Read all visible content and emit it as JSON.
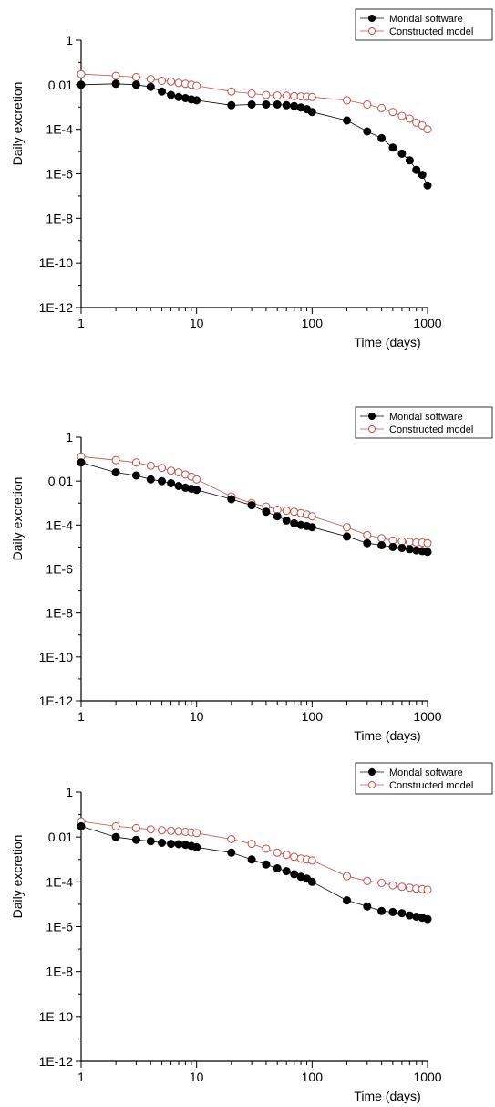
{
  "colors": {
    "mondal": "#000000",
    "constructed": "#c0504d",
    "axis": "#000000"
  },
  "chart_data": [
    {
      "type": "scatter",
      "title": "",
      "xlabel": "Time (days)",
      "ylabel": "Daily excretion",
      "xscale": "log",
      "yscale": "log",
      "xlim": [
        1,
        1000
      ],
      "ylim": [
        1e-12,
        1
      ],
      "xticks": [
        "1",
        "10",
        "100",
        "1000"
      ],
      "yticks": [
        "1E-12",
        "1E-10",
        "1E-8",
        "1E-6",
        "1E-4",
        "0.01",
        "1"
      ],
      "legend": "top-right",
      "series": [
        {
          "name": "Mondal software",
          "marker": "filled-circle",
          "color": "#000000",
          "x": [
            1,
            2,
            3,
            4,
            5,
            6,
            7,
            8,
            9,
            10,
            20,
            30,
            40,
            50,
            60,
            70,
            80,
            90,
            100,
            200,
            300,
            400,
            500,
            600,
            700,
            800,
            900,
            1000
          ],
          "y": [
            0.01,
            0.011,
            0.01,
            0.008,
            0.005,
            0.0035,
            0.0028,
            0.0025,
            0.0022,
            0.002,
            0.0012,
            0.0013,
            0.0013,
            0.0013,
            0.0012,
            0.0011,
            0.00095,
            0.0008,
            0.0006,
            0.00025,
            8e-05,
            4e-05,
            1.5e-05,
            8e-06,
            4e-06,
            1.5e-06,
            9e-07,
            3e-07
          ]
        },
        {
          "name": "Constructed model",
          "marker": "open-circle",
          "color": "#c0504d",
          "x": [
            1,
            2,
            3,
            4,
            5,
            6,
            7,
            8,
            9,
            10,
            20,
            30,
            40,
            50,
            60,
            70,
            80,
            90,
            100,
            200,
            300,
            400,
            500,
            600,
            700,
            800,
            900,
            1000
          ],
          "y": [
            0.03,
            0.025,
            0.022,
            0.018,
            0.015,
            0.014,
            0.012,
            0.011,
            0.01,
            0.009,
            0.005,
            0.004,
            0.0035,
            0.0033,
            0.0032,
            0.0031,
            0.003,
            0.0029,
            0.0028,
            0.002,
            0.0013,
            0.0009,
            0.0006,
            0.0004,
            0.0003,
            0.0002,
            0.00015,
            0.0001
          ]
        }
      ]
    },
    {
      "type": "scatter",
      "title": "",
      "xlabel": "Time (days)",
      "ylabel": "Daily excretion",
      "xscale": "log",
      "yscale": "log",
      "xlim": [
        1,
        1000
      ],
      "ylim": [
        1e-12,
        1
      ],
      "xticks": [
        "1",
        "10",
        "100",
        "1000"
      ],
      "yticks": [
        "1E-12",
        "1E-10",
        "1E-8",
        "1E-6",
        "1E-4",
        "0.01",
        "1"
      ],
      "legend": "top-right",
      "series": [
        {
          "name": "Mondal software",
          "marker": "filled-circle",
          "color": "#000000",
          "x": [
            1,
            2,
            3,
            4,
            5,
            6,
            7,
            8,
            9,
            10,
            20,
            30,
            40,
            50,
            60,
            70,
            80,
            90,
            100,
            200,
            300,
            400,
            500,
            600,
            700,
            800,
            900,
            1000
          ],
          "y": [
            0.07,
            0.025,
            0.018,
            0.012,
            0.01,
            0.008,
            0.006,
            0.005,
            0.0045,
            0.004,
            0.0015,
            0.0008,
            0.0004,
            0.00025,
            0.00016,
            0.00012,
            0.0001,
            9e-05,
            8e-05,
            3e-05,
            1.5e-05,
            1.2e-05,
            1e-05,
            9e-06,
            8e-06,
            7e-06,
            6.5e-06,
            6e-06
          ]
        },
        {
          "name": "Constructed model",
          "marker": "open-circle",
          "color": "#c0504d",
          "x": [
            1,
            2,
            3,
            4,
            5,
            6,
            7,
            8,
            9,
            10,
            20,
            30,
            40,
            50,
            60,
            70,
            80,
            90,
            100,
            200,
            300,
            400,
            500,
            600,
            700,
            800,
            900,
            1000
          ],
          "y": [
            0.13,
            0.09,
            0.07,
            0.05,
            0.04,
            0.03,
            0.025,
            0.02,
            0.016,
            0.012,
            0.002,
            0.001,
            0.0007,
            0.0005,
            0.00045,
            0.0004,
            0.00035,
            0.0003,
            0.00025,
            8e-05,
            3.5e-05,
            2.5e-05,
            2e-05,
            1.8e-05,
            1.7e-05,
            1.6e-05,
            1.6e-05,
            1.5e-05
          ]
        }
      ]
    },
    {
      "type": "scatter",
      "title": "",
      "xlabel": "Time (days)",
      "ylabel": "Daily excretion",
      "xscale": "log",
      "yscale": "log",
      "xlim": [
        1,
        1000
      ],
      "ylim": [
        1e-12,
        1
      ],
      "xticks": [
        "1",
        "10",
        "100",
        "1000"
      ],
      "yticks": [
        "1E-12",
        "1E-10",
        "1E-8",
        "1E-6",
        "1E-4",
        "0.01",
        "1"
      ],
      "legend": "top-right",
      "series": [
        {
          "name": "Mondal software",
          "marker": "filled-circle",
          "color": "#000000",
          "x": [
            1,
            2,
            3,
            4,
            5,
            6,
            7,
            8,
            9,
            10,
            20,
            30,
            40,
            50,
            60,
            70,
            80,
            90,
            100,
            200,
            300,
            400,
            500,
            600,
            700,
            800,
            900,
            1000
          ],
          "y": [
            0.03,
            0.01,
            0.0075,
            0.0065,
            0.0055,
            0.005,
            0.0048,
            0.0045,
            0.004,
            0.0035,
            0.002,
            0.001,
            0.0006,
            0.0004,
            0.0003,
            0.00022,
            0.00017,
            0.00014,
            0.0001,
            1.5e-05,
            8e-06,
            5e-06,
            4.5e-06,
            4e-06,
            3.2e-06,
            2.8e-06,
            2.5e-06,
            2.2e-06
          ]
        },
        {
          "name": "Constructed model",
          "marker": "open-circle",
          "color": "#c0504d",
          "x": [
            1,
            2,
            3,
            4,
            5,
            6,
            7,
            8,
            9,
            10,
            20,
            30,
            40,
            50,
            60,
            70,
            80,
            90,
            100,
            200,
            300,
            400,
            500,
            600,
            700,
            800,
            900,
            1000
          ],
          "y": [
            0.05,
            0.03,
            0.025,
            0.022,
            0.02,
            0.019,
            0.018,
            0.017,
            0.016,
            0.015,
            0.008,
            0.005,
            0.003,
            0.002,
            0.0016,
            0.0013,
            0.0011,
            0.001,
            0.0009,
            0.00018,
            0.00011,
            9e-05,
            7e-05,
            6e-05,
            5.5e-05,
            5e-05,
            4.8e-05,
            4.5e-05
          ]
        }
      ]
    }
  ]
}
